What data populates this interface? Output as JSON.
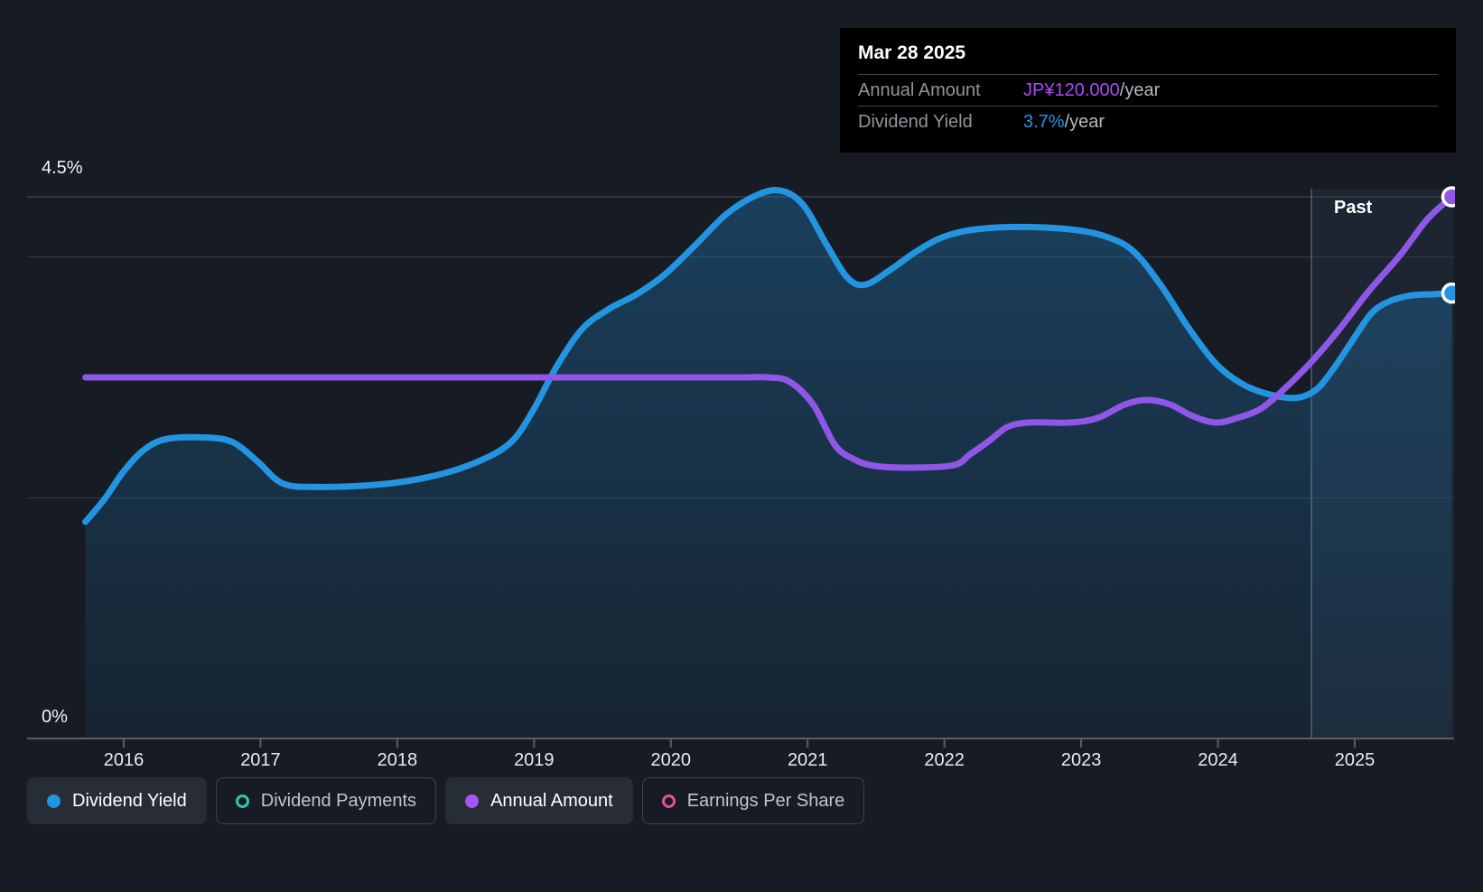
{
  "tooltip": {
    "date": "Mar 28 2025",
    "rows": [
      {
        "label": "Annual Amount",
        "value": "JP¥120.000",
        "suffix": "/year"
      },
      {
        "label": "Dividend Yield",
        "value": "3.7%",
        "suffix": "/year"
      }
    ]
  },
  "axis": {
    "y_top": "4.5%",
    "y_bottom": "0%",
    "years": [
      "2016",
      "2017",
      "2018",
      "2019",
      "2020",
      "2021",
      "2022",
      "2023",
      "2024",
      "2025"
    ]
  },
  "region_label": "Past",
  "legend": [
    {
      "label": "Dividend Yield",
      "marker": "filled",
      "color": "#2394df",
      "active": true
    },
    {
      "label": "Dividend Payments",
      "marker": "hollow",
      "color": "#2dc7b2",
      "active": false
    },
    {
      "label": "Annual Amount",
      "marker": "filled",
      "color": "#a855f7",
      "active": true
    },
    {
      "label": "Earnings Per Share",
      "marker": "hollow",
      "color": "#e0509f",
      "active": false
    }
  ],
  "colors": {
    "background": "#161b24",
    "dividend_yield_line": "#2394df",
    "annual_amount_line": "#8f56e8",
    "tooltip_value_purple": "#a64cf5",
    "tooltip_value_blue": "#2196f0",
    "gridline_major": "#454b54",
    "gridline_minor": "#343a43",
    "axis_line": "#5a5f66"
  },
  "chart_data": {
    "type": "line",
    "title": "Dividend history",
    "legend_position": "bottom",
    "grid": true,
    "x_axis": {
      "ticks": [
        "2016",
        "2017",
        "2018",
        "2019",
        "2020",
        "2021",
        "2022",
        "2023",
        "2024",
        "2025"
      ],
      "range": [
        2015.7,
        2025.75
      ]
    },
    "y_axis": {
      "unit": "%",
      "range": [
        0,
        4.5
      ],
      "gridlines_pct": [
        4.5,
        4.0,
        2.0
      ],
      "labeled": [
        "4.5%",
        "0%"
      ]
    },
    "past_divider_year": 2024.68,
    "series": [
      {
        "name": "Dividend Yield",
        "unit": "%",
        "style": "line_with_area",
        "points": [
          [
            2015.72,
            1.8
          ],
          [
            2015.86,
            1.99
          ],
          [
            2016.0,
            2.22
          ],
          [
            2016.15,
            2.4
          ],
          [
            2016.32,
            2.49
          ],
          [
            2016.61,
            2.5
          ],
          [
            2016.8,
            2.46
          ],
          [
            2016.98,
            2.3
          ],
          [
            2017.16,
            2.12
          ],
          [
            2017.41,
            2.09
          ],
          [
            2017.87,
            2.11
          ],
          [
            2018.26,
            2.18
          ],
          [
            2018.59,
            2.3
          ],
          [
            2018.83,
            2.46
          ],
          [
            2018.99,
            2.72
          ],
          [
            2019.16,
            3.08
          ],
          [
            2019.35,
            3.4
          ],
          [
            2019.55,
            3.57
          ],
          [
            2019.75,
            3.69
          ],
          [
            2019.95,
            3.85
          ],
          [
            2020.18,
            4.1
          ],
          [
            2020.41,
            4.36
          ],
          [
            2020.64,
            4.52
          ],
          [
            2020.81,
            4.55
          ],
          [
            2020.97,
            4.43
          ],
          [
            2021.14,
            4.1
          ],
          [
            2021.29,
            3.83
          ],
          [
            2021.42,
            3.77
          ],
          [
            2021.6,
            3.89
          ],
          [
            2021.8,
            4.05
          ],
          [
            2022.0,
            4.17
          ],
          [
            2022.23,
            4.23
          ],
          [
            2022.56,
            4.25
          ],
          [
            2022.92,
            4.23
          ],
          [
            2023.18,
            4.17
          ],
          [
            2023.38,
            4.05
          ],
          [
            2023.58,
            3.77
          ],
          [
            2023.78,
            3.42
          ],
          [
            2023.98,
            3.12
          ],
          [
            2024.17,
            2.95
          ],
          [
            2024.37,
            2.86
          ],
          [
            2024.57,
            2.83
          ],
          [
            2024.72,
            2.9
          ],
          [
            2024.85,
            3.08
          ],
          [
            2024.98,
            3.3
          ],
          [
            2025.12,
            3.53
          ],
          [
            2025.25,
            3.63
          ],
          [
            2025.41,
            3.68
          ],
          [
            2025.56,
            3.69
          ],
          [
            2025.71,
            3.7
          ]
        ]
      },
      {
        "name": "Annual Amount",
        "unit": "JP¥/year",
        "style": "line",
        "axis_alignment": "JP¥120 aligns with 4.5% gridline",
        "yen_to_pct": 0.0375,
        "points": [
          [
            2015.72,
            80
          ],
          [
            2017.0,
            80
          ],
          [
            2019.0,
            80
          ],
          [
            2020.4,
            80
          ],
          [
            2020.71,
            80
          ],
          [
            2020.87,
            79
          ],
          [
            2021.04,
            74
          ],
          [
            2021.2,
            65
          ],
          [
            2021.33,
            62
          ],
          [
            2021.47,
            60.5
          ],
          [
            2021.7,
            60
          ],
          [
            2022.06,
            60.5
          ],
          [
            2022.19,
            63
          ],
          [
            2022.33,
            66
          ],
          [
            2022.46,
            69
          ],
          [
            2022.62,
            70
          ],
          [
            2022.92,
            70
          ],
          [
            2023.12,
            71
          ],
          [
            2023.32,
            74
          ],
          [
            2023.48,
            75
          ],
          [
            2023.65,
            74
          ],
          [
            2023.81,
            71.5
          ],
          [
            2023.98,
            70
          ],
          [
            2024.14,
            71
          ],
          [
            2024.31,
            73
          ],
          [
            2024.47,
            77
          ],
          [
            2024.67,
            83
          ],
          [
            2024.87,
            90
          ],
          [
            2025.1,
            99
          ],
          [
            2025.33,
            107
          ],
          [
            2025.53,
            115
          ],
          [
            2025.71,
            120
          ]
        ]
      }
    ]
  }
}
